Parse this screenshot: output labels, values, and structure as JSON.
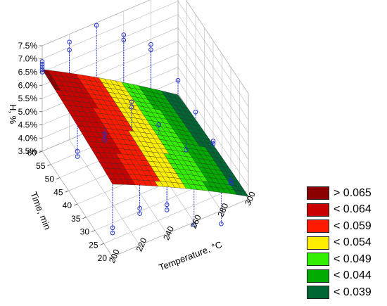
{
  "chart_data": {
    "type": "surface3d",
    "x": {
      "label": "Temperature, °C",
      "ticks": [
        200,
        220,
        240,
        260,
        280,
        300
      ],
      "range": [
        200,
        300
      ]
    },
    "y": {
      "label": "Time, min",
      "ticks": [
        20,
        25,
        30,
        35,
        40,
        45,
        50,
        55,
        60
      ],
      "range": [
        20,
        60
      ]
    },
    "z": {
      "label": "H, %",
      "ticks": [
        "3.5%",
        "4.0%",
        "4.5%",
        "5.0%",
        "5.5%",
        "6.0%",
        "6.5%",
        "7.0%",
        "7.5%"
      ],
      "range": [
        0.035,
        0.075
      ]
    },
    "surface_corners": {
      "T200_t60": 0.066,
      "T200_t20": 0.0625,
      "T300_t60": 0.0345,
      "T300_t20": 0.036
    },
    "color_scale": [
      {
        "label": "> 0.065",
        "color": "#8b0000"
      },
      {
        "label": "< 0.064",
        "color": "#c80000"
      },
      {
        "label": "< 0.059",
        "color": "#ff1a00"
      },
      {
        "label": "< 0.054",
        "color": "#ffee00"
      },
      {
        "label": "< 0.049",
        "color": "#33ee00"
      },
      {
        "label": "< 0.044",
        "color": "#00aa00"
      },
      {
        "label": "< 0.039",
        "color": "#006633"
      }
    ],
    "points": [
      {
        "T": 200,
        "t": 60,
        "H": 0.069
      },
      {
        "T": 200,
        "t": 60,
        "H": 0.068
      },
      {
        "T": 200,
        "t": 60,
        "H": 0.067
      },
      {
        "T": 200,
        "t": 60,
        "H": 0.066
      },
      {
        "T": 200,
        "t": 60,
        "H": 0.065
      },
      {
        "T": 220,
        "t": 60,
        "H": 0.072
      },
      {
        "T": 220,
        "t": 60,
        "H": 0.069
      },
      {
        "T": 240,
        "t": 60,
        "H": 0.074
      },
      {
        "T": 260,
        "t": 60,
        "H": 0.066
      },
      {
        "T": 260,
        "t": 60,
        "H": 0.064
      },
      {
        "T": 280,
        "t": 60,
        "H": 0.058
      },
      {
        "T": 280,
        "t": 60,
        "H": 0.056
      },
      {
        "T": 200,
        "t": 40,
        "H": 0.055
      },
      {
        "T": 200,
        "t": 40,
        "H": 0.053
      },
      {
        "T": 220,
        "t": 40,
        "H": 0.057
      },
      {
        "T": 220,
        "t": 40,
        "H": 0.055
      },
      {
        "T": 240,
        "t": 40,
        "H": 0.065
      },
      {
        "T": 240,
        "t": 40,
        "H": 0.063
      },
      {
        "T": 260,
        "t": 40,
        "H": 0.052
      },
      {
        "T": 280,
        "t": 40,
        "H": 0.038
      },
      {
        "T": 200,
        "t": 20,
        "H": 0.046
      },
      {
        "T": 200,
        "t": 20,
        "H": 0.044
      },
      {
        "T": 220,
        "t": 20,
        "H": 0.049
      },
      {
        "T": 220,
        "t": 20,
        "H": 0.047
      },
      {
        "T": 240,
        "t": 20,
        "H": 0.046
      },
      {
        "T": 240,
        "t": 20,
        "H": 0.044
      },
      {
        "T": 300,
        "t": 60,
        "H": 0.04
      },
      {
        "T": 300,
        "t": 50,
        "H": 0.038
      },
      {
        "T": 300,
        "t": 40,
        "H": 0.036
      },
      {
        "T": 300,
        "t": 40,
        "H": 0.037
      },
      {
        "T": 300,
        "t": 30,
        "H": 0.032
      },
      {
        "T": 300,
        "t": 30,
        "H": 0.031
      },
      {
        "T": 280,
        "t": 20,
        "H": 0.03
      },
      {
        "T": 260,
        "t": 20,
        "H": 0.034
      }
    ]
  }
}
